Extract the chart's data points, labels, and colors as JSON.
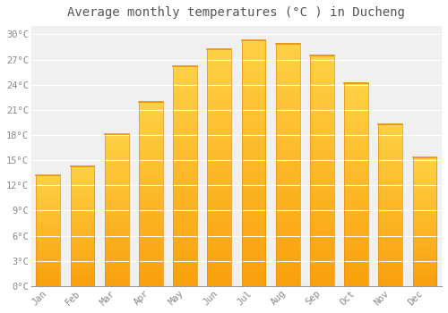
{
  "title": "Average monthly temperatures (°C ) in Ducheng",
  "months": [
    "Jan",
    "Feb",
    "Mar",
    "Apr",
    "May",
    "Jun",
    "Jul",
    "Aug",
    "Sep",
    "Oct",
    "Nov",
    "Dec"
  ],
  "values": [
    13.2,
    14.3,
    18.1,
    22.0,
    26.2,
    28.2,
    29.3,
    28.9,
    27.5,
    24.2,
    19.3,
    15.3
  ],
  "bar_color_top": "#FFCC44",
  "bar_color_bottom": "#F5A020",
  "bar_edge_color": "#E89010",
  "background_color": "#FFFFFF",
  "plot_bg_color": "#F0F0F0",
  "grid_color": "#FFFFFF",
  "ytick_labels": [
    "0°C",
    "3°C",
    "6°C",
    "9°C",
    "12°C",
    "15°C",
    "18°C",
    "21°C",
    "24°C",
    "27°C",
    "30°C"
  ],
  "ytick_values": [
    0,
    3,
    6,
    9,
    12,
    15,
    18,
    21,
    24,
    27,
    30
  ],
  "ylim": [
    0,
    31
  ],
  "title_fontsize": 10,
  "tick_fontsize": 7.5,
  "font_family": "monospace"
}
